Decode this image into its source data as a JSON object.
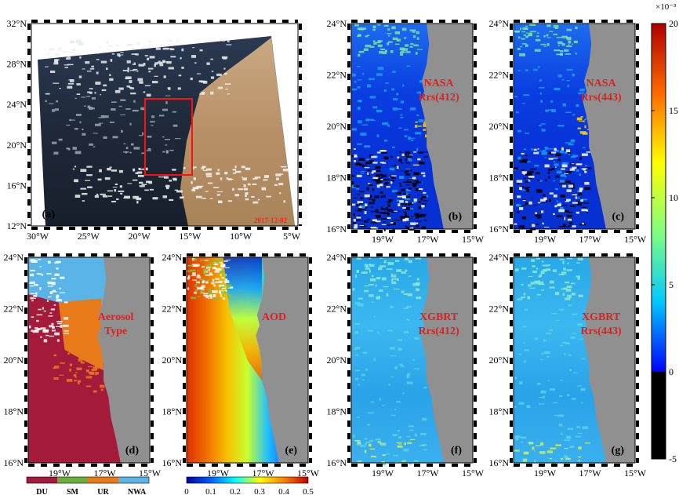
{
  "chart_data": [
    {
      "id": "a",
      "type": "image-map",
      "panel_label": "(a)",
      "date": "2017-12-02",
      "lat_ticks": [
        "12°N",
        "16°N",
        "20°N",
        "24°N",
        "28°N",
        "32°N"
      ],
      "lon_ticks": [
        "30°W",
        "25°W",
        "20°W",
        "15°W",
        "10°W",
        "5°W"
      ],
      "region_box": {
        "lon": [
          -21,
          -15.3
        ],
        "lat": [
          16.2,
          24
        ]
      }
    },
    {
      "id": "b",
      "type": "heatmap",
      "panel_label": "(b)",
      "annotation": [
        "NASA",
        "Rrs(412)"
      ],
      "lat_ticks": [
        "16°N",
        "18°N",
        "20°N",
        "22°N",
        "24°N"
      ],
      "lon_ticks": [
        "19°W",
        "17°W",
        "15°W"
      ]
    },
    {
      "id": "c",
      "type": "heatmap",
      "panel_label": "(c)",
      "annotation": [
        "NASA",
        "Rrs(443)"
      ],
      "lat_ticks": [
        "16°N",
        "18°N",
        "20°N",
        "22°N",
        "24°N"
      ],
      "lon_ticks": [
        "19°W",
        "17°W",
        "15°W"
      ]
    },
    {
      "id": "d",
      "type": "heatmap",
      "panel_label": "(d)",
      "annotation": [
        "Aerosol",
        "Type"
      ],
      "lat_ticks": [
        "16°N",
        "18°N",
        "20°N",
        "22°N",
        "24°N"
      ],
      "lon_ticks": [
        "19°W",
        "17°W",
        "15°W"
      ]
    },
    {
      "id": "e",
      "type": "heatmap",
      "panel_label": "(e)",
      "annotation": [
        "AOD"
      ],
      "lat_ticks": [
        "16°N",
        "18°N",
        "20°N",
        "22°N",
        "24°N"
      ],
      "lon_ticks": [
        "19°W",
        "17°W",
        "15°W"
      ]
    },
    {
      "id": "f",
      "type": "heatmap",
      "panel_label": "(f)",
      "annotation": [
        "XGBRT",
        "Rrs(412)"
      ],
      "lat_ticks": [
        "16°N",
        "18°N",
        "20°N",
        "22°N",
        "24°N"
      ],
      "lon_ticks": [
        "19°W",
        "17°W",
        "15°W"
      ]
    },
    {
      "id": "g",
      "type": "heatmap",
      "panel_label": "(g)",
      "annotation": [
        "XGBRT",
        "Rrs(443)"
      ],
      "lat_ticks": [
        "16°N",
        "18°N",
        "20°N",
        "22°N",
        "24°N"
      ],
      "lon_ticks": [
        "19°W",
        "17°W",
        "15°W"
      ]
    }
  ],
  "colorbars": {
    "rrs": {
      "exponent": "×10⁻³",
      "ticks": [
        "20",
        "15",
        "10",
        "5",
        "0",
        "-5"
      ],
      "range": [
        -5,
        20
      ],
      "colors": [
        "#000000",
        "#0000ff",
        "#00c8ff",
        "#7fff7f",
        "#ffff00",
        "#ff6a00",
        "#b00000"
      ]
    },
    "aerosol_type": {
      "labels": [
        "DU",
        "SM",
        "UR",
        "NWA"
      ],
      "colors": [
        "#a31a3a",
        "#6ab03a",
        "#e87a1a",
        "#5ab4e8"
      ]
    },
    "aod": {
      "ticks": [
        "0",
        "0.1",
        "0.2",
        "0.3",
        "0.4",
        "0.5"
      ],
      "range": [
        0,
        0.5
      ],
      "colors": [
        "#0000a0",
        "#0060ff",
        "#00ffff",
        "#ffff00",
        "#ff8000",
        "#c00000"
      ]
    }
  }
}
